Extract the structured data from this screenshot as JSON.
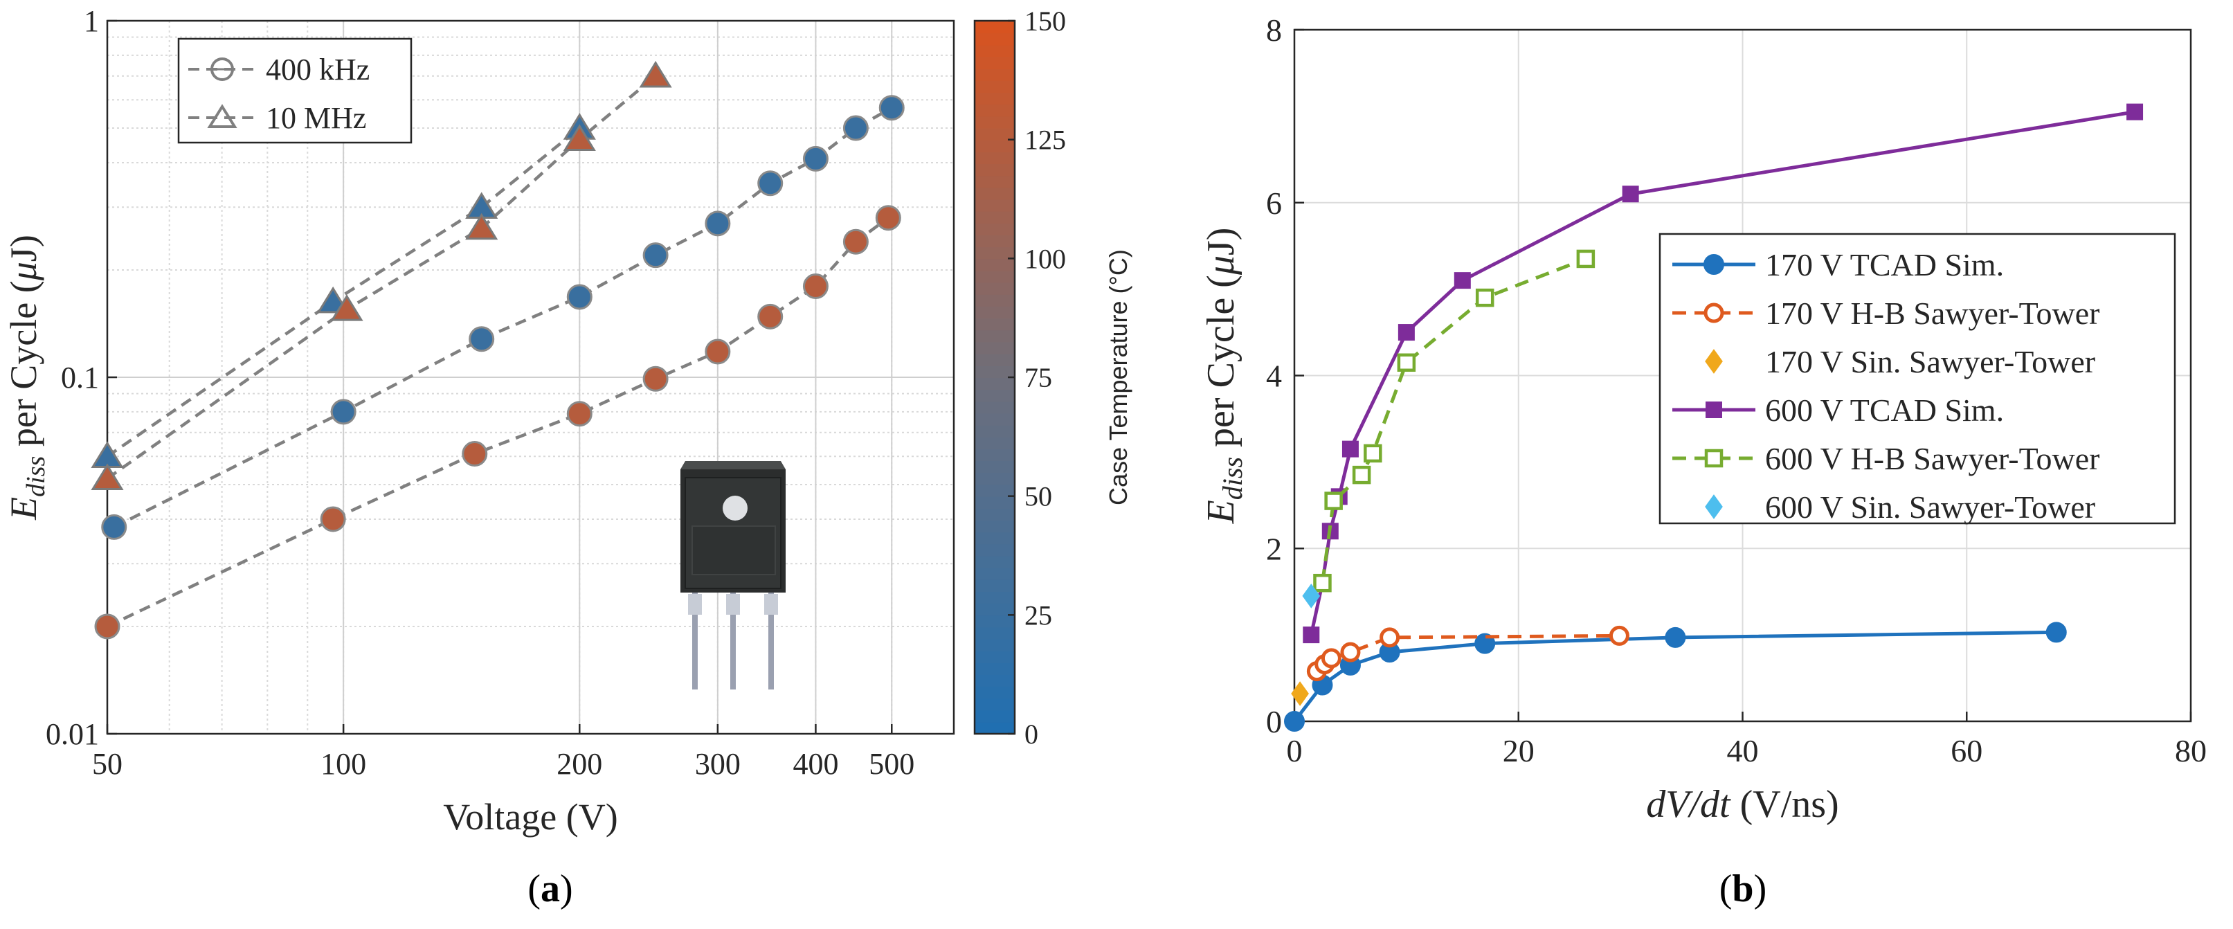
{
  "chart_data": [
    {
      "panel": "a",
      "type": "scatter",
      "caption": "(a)",
      "xlabel": "Voltage (V)",
      "ylabel_main": "E",
      "ylabel_sub": "diss",
      "ylabel_rest": " per Cycle (",
      "ylabel_mu": "μ",
      "ylabel_end": "J)",
      "xscale": "log",
      "yscale": "log",
      "xlim": [
        50,
        600
      ],
      "ylim": [
        0.01,
        1
      ],
      "xticks": [
        50,
        100,
        200,
        300,
        400,
        500
      ],
      "xtick_labels": [
        "50",
        "100",
        "200",
        "300",
        "400",
        "500"
      ],
      "yticks": [
        0.01,
        0.1,
        1
      ],
      "ytick_labels": [
        "0.01",
        "0.1",
        "1"
      ],
      "grid": true,
      "legend_position": "top-left",
      "legend": [
        {
          "label": "400 kHz",
          "marker": "circle"
        },
        {
          "label": "10 MHz",
          "marker": "triangle"
        }
      ],
      "colorbar": {
        "label": "Case Temperature (°C)",
        "min": 0,
        "max": 150,
        "ticks": [
          0,
          25,
          50,
          75,
          100,
          125,
          150
        ],
        "tick_labels": [
          "0",
          "25",
          "50",
          "75",
          "100",
          "125",
          "150"
        ],
        "color_low": "#1f6fb2",
        "color_mid": "#6e6e7a",
        "color_high": "#d9531e"
      },
      "series": [
        {
          "name": "400 kHz, 25 °C",
          "marker": "circle",
          "temperature": 25,
          "x": [
            51,
            100,
            150,
            200,
            250,
            300,
            350,
            400,
            450,
            500
          ],
          "y": [
            0.038,
            0.08,
            0.128,
            0.168,
            0.22,
            0.27,
            0.35,
            0.41,
            0.5,
            0.57
          ]
        },
        {
          "name": "400 kHz, 125 °C",
          "marker": "circle",
          "temperature": 125,
          "x": [
            50,
            97,
            147,
            200,
            250,
            300,
            350,
            400,
            450,
            495
          ],
          "y": [
            0.02,
            0.04,
            0.061,
            0.079,
            0.099,
            0.118,
            0.148,
            0.18,
            0.24,
            0.28
          ]
        },
        {
          "name": "10 MHz, 25 °C",
          "marker": "triangle",
          "temperature": 25,
          "x": [
            50,
            97,
            150,
            200
          ],
          "y": [
            0.06,
            0.163,
            0.3,
            0.5
          ]
        },
        {
          "name": "10 MHz, 125 °C",
          "marker": "triangle",
          "temperature": 125,
          "x": [
            50,
            101,
            150,
            200,
            250
          ],
          "y": [
            0.052,
            0.155,
            0.262,
            0.465,
            0.7
          ]
        }
      ]
    },
    {
      "panel": "b",
      "type": "line",
      "caption": "(b)",
      "xlabel_main": "dV/dt",
      "xlabel_rest": " (V/ns)",
      "ylabel_main": "E",
      "ylabel_sub": "diss",
      "ylabel_rest": " per Cycle (",
      "ylabel_mu": "μ",
      "ylabel_end": "J)",
      "xlim": [
        0,
        80
      ],
      "ylim": [
        0,
        8
      ],
      "xticks": [
        0,
        20,
        40,
        60,
        80
      ],
      "xtick_labels": [
        "0",
        "20",
        "40",
        "60",
        "80"
      ],
      "yticks": [
        0,
        2,
        4,
        6,
        8
      ],
      "ytick_labels": [
        "0",
        "2",
        "4",
        "6",
        "8"
      ],
      "grid": true,
      "legend_position": "center-right",
      "series": [
        {
          "name": "170 V TCAD Sim.",
          "color": "#1f72bd",
          "style": "solid",
          "marker": "circle",
          "filled": true,
          "x": [
            0,
            2.5,
            5,
            8.5,
            17,
            34,
            68
          ],
          "y": [
            0,
            0.42,
            0.65,
            0.8,
            0.9,
            0.97,
            1.03
          ]
        },
        {
          "name": "170 V H-B Sawyer-Tower",
          "color": "#df5a1e",
          "style": "dashed",
          "marker": "circle",
          "filled": false,
          "x": [
            2,
            2.7,
            3.3,
            5,
            8.5,
            29
          ],
          "y": [
            0.58,
            0.66,
            0.73,
            0.8,
            0.97,
            0.99
          ]
        },
        {
          "name": "170 V Sin. Sawyer-Tower",
          "color": "#f0a81c",
          "style": "none",
          "marker": "diamond",
          "filled": true,
          "x": [
            0.5
          ],
          "y": [
            0.32
          ]
        },
        {
          "name": "600 V TCAD Sim.",
          "color": "#7e2c9a",
          "style": "solid",
          "marker": "square",
          "filled": true,
          "x": [
            1.5,
            2.5,
            3.2,
            4,
            5,
            10,
            15,
            30,
            75
          ],
          "y": [
            1.0,
            1.6,
            2.2,
            2.6,
            3.15,
            4.5,
            5.1,
            6.1,
            7.05
          ]
        },
        {
          "name": "600 V H-B Sawyer-Tower",
          "color": "#77ac30",
          "style": "dashed",
          "marker": "square",
          "filled": false,
          "x": [
            2.5,
            3.5,
            6,
            7,
            10,
            17,
            26
          ],
          "y": [
            1.6,
            2.55,
            2.85,
            3.1,
            4.15,
            4.9,
            5.35
          ]
        },
        {
          "name": "600 V Sin. Sawyer-Tower",
          "color": "#4dbeee",
          "style": "none",
          "marker": "diamond",
          "filled": true,
          "x": [
            1.5
          ],
          "y": [
            1.45
          ]
        }
      ]
    }
  ]
}
